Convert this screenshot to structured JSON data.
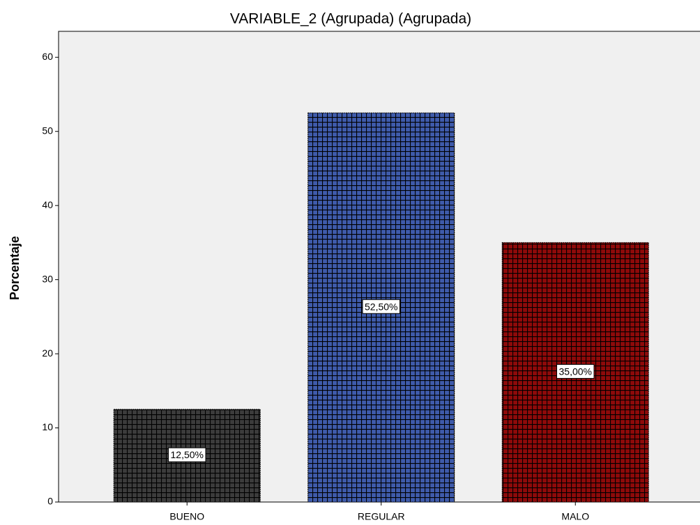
{
  "chart_data": {
    "type": "bar",
    "title": "VARIABLE_2 (Agrupada) (Agrupada)",
    "y_label": "Porcentaje",
    "categories": [
      "BUENO",
      "REGULAR",
      "MALO"
    ],
    "values": [
      12.5,
      52.5,
      35
    ],
    "value_labels": [
      "12,50%",
      "52,50%",
      "35,00%"
    ],
    "colors": [
      "#3c3c3c",
      "#3f5bab",
      "#8e0a0a"
    ],
    "ylim": [
      0,
      63.5
    ],
    "yticks": [
      0,
      10,
      20,
      30,
      40,
      50,
      60
    ]
  }
}
